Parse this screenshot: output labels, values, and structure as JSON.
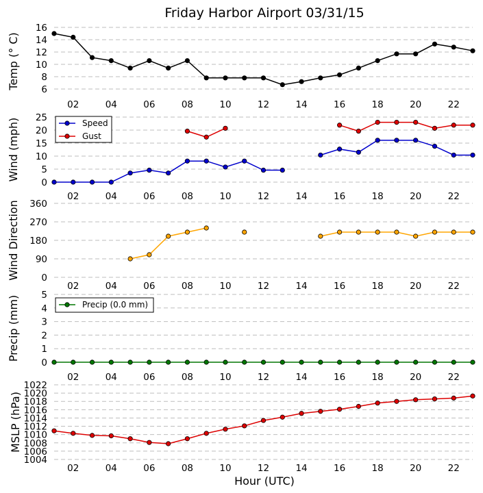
{
  "title": "Friday Harbor Airport 03/31/15",
  "xlabel": "Hour (UTC)",
  "x_tick_labels": [
    "02",
    "04",
    "06",
    "08",
    "10",
    "12",
    "14",
    "16",
    "18",
    "20",
    "22"
  ],
  "chart_data": [
    {
      "type": "line",
      "ylabel": "Temp ($^\\circ$C)",
      "ylabel_display": "Temp (° C)",
      "ylim": [
        5,
        16
      ],
      "yticks": [
        6,
        8,
        10,
        12,
        14,
        16
      ],
      "x": [
        1,
        2,
        3,
        4,
        5,
        6,
        7,
        8,
        9,
        10,
        11,
        12,
        13,
        14,
        15,
        16,
        17,
        18,
        19,
        20,
        21,
        22,
        23
      ],
      "series": [
        {
          "name": "Temp",
          "color": "#000000",
          "values": [
            15.0,
            14.4,
            11.1,
            10.6,
            9.4,
            10.6,
            9.4,
            10.6,
            7.8,
            7.8,
            7.8,
            7.8,
            6.7,
            7.2,
            7.8,
            8.3,
            9.4,
            10.6,
            11.7,
            11.7,
            13.3,
            12.8,
            12.2
          ]
        }
      ]
    },
    {
      "type": "line",
      "ylabel": "Wind (mph)",
      "ylim": [
        0,
        25
      ],
      "yticks": [
        0,
        5,
        10,
        15,
        20,
        25
      ],
      "x": [
        1,
        2,
        3,
        4,
        5,
        6,
        7,
        8,
        9,
        10,
        11,
        12,
        13,
        14,
        15,
        16,
        17,
        18,
        19,
        20,
        21,
        22,
        23
      ],
      "series": [
        {
          "name": "Speed",
          "color": "#0000cc",
          "values": [
            0,
            0,
            0,
            0,
            3.5,
            4.6,
            3.5,
            8.1,
            8.1,
            5.8,
            8.1,
            4.6,
            4.6,
            null,
            10.4,
            12.7,
            11.5,
            16.1,
            16.1,
            16.1,
            13.8,
            10.4,
            10.4
          ]
        },
        {
          "name": "Gust",
          "color": "#dd0000",
          "values": [
            null,
            null,
            null,
            null,
            null,
            null,
            null,
            19.6,
            17.3,
            20.7,
            null,
            null,
            null,
            null,
            null,
            21.9,
            19.6,
            23.0,
            23.0,
            23.0,
            20.7,
            21.9,
            21.9
          ]
        }
      ],
      "legend": [
        "Speed",
        "Gust"
      ],
      "legend_loc": "upper-left"
    },
    {
      "type": "line",
      "ylabel": "Wind Direction",
      "ylim": [
        0,
        360
      ],
      "yticks": [
        0,
        90,
        180,
        270,
        360
      ],
      "x": [
        1,
        2,
        3,
        4,
        5,
        6,
        7,
        8,
        9,
        10,
        11,
        12,
        13,
        14,
        15,
        16,
        17,
        18,
        19,
        20,
        21,
        22,
        23
      ],
      "series": [
        {
          "name": "Direction",
          "color": "#ffa500",
          "values": [
            null,
            null,
            null,
            null,
            90,
            110,
            200,
            220,
            240,
            null,
            220,
            null,
            null,
            null,
            200,
            220,
            220,
            220,
            220,
            200,
            220,
            220,
            220
          ]
        }
      ]
    },
    {
      "type": "line",
      "ylabel": "Precip (mm)",
      "ylim": [
        0,
        5
      ],
      "yticks": [
        0,
        1,
        2,
        3,
        4,
        5
      ],
      "x": [
        1,
        2,
        3,
        4,
        5,
        6,
        7,
        8,
        9,
        10,
        11,
        12,
        13,
        14,
        15,
        16,
        17,
        18,
        19,
        20,
        21,
        22,
        23
      ],
      "series": [
        {
          "name": "Precip (0.0 mm)",
          "color": "#007700",
          "values": [
            0,
            0,
            0,
            0,
            0,
            0,
            0,
            0,
            0,
            0,
            0,
            0,
            0,
            0,
            0,
            0,
            0,
            0,
            0,
            0,
            0,
            0,
            0
          ]
        }
      ],
      "legend": [
        "Precip (0.0 mm)"
      ],
      "legend_loc": "upper-left"
    },
    {
      "type": "line",
      "ylabel": "MSLP (hPa)",
      "ylim": [
        1004,
        1022
      ],
      "yticks": [
        1004,
        1006,
        1008,
        1010,
        1012,
        1014,
        1016,
        1018,
        1020,
        1022
      ],
      "x": [
        1,
        2,
        3,
        4,
        5,
        6,
        7,
        8,
        9,
        10,
        11,
        12,
        13,
        14,
        15,
        16,
        17,
        18,
        19,
        20,
        21,
        22,
        23
      ],
      "series": [
        {
          "name": "MSLP",
          "color": "#dd0000",
          "values": [
            1010.9,
            1010.3,
            1009.8,
            1009.7,
            1009.0,
            1008.1,
            1007.8,
            1009.0,
            1010.3,
            1011.3,
            1012.1,
            1013.4,
            1014.2,
            1015.1,
            1015.6,
            1016.1,
            1016.8,
            1017.6,
            1018.0,
            1018.4,
            1018.6,
            1018.8,
            1019.3
          ]
        }
      ]
    }
  ]
}
